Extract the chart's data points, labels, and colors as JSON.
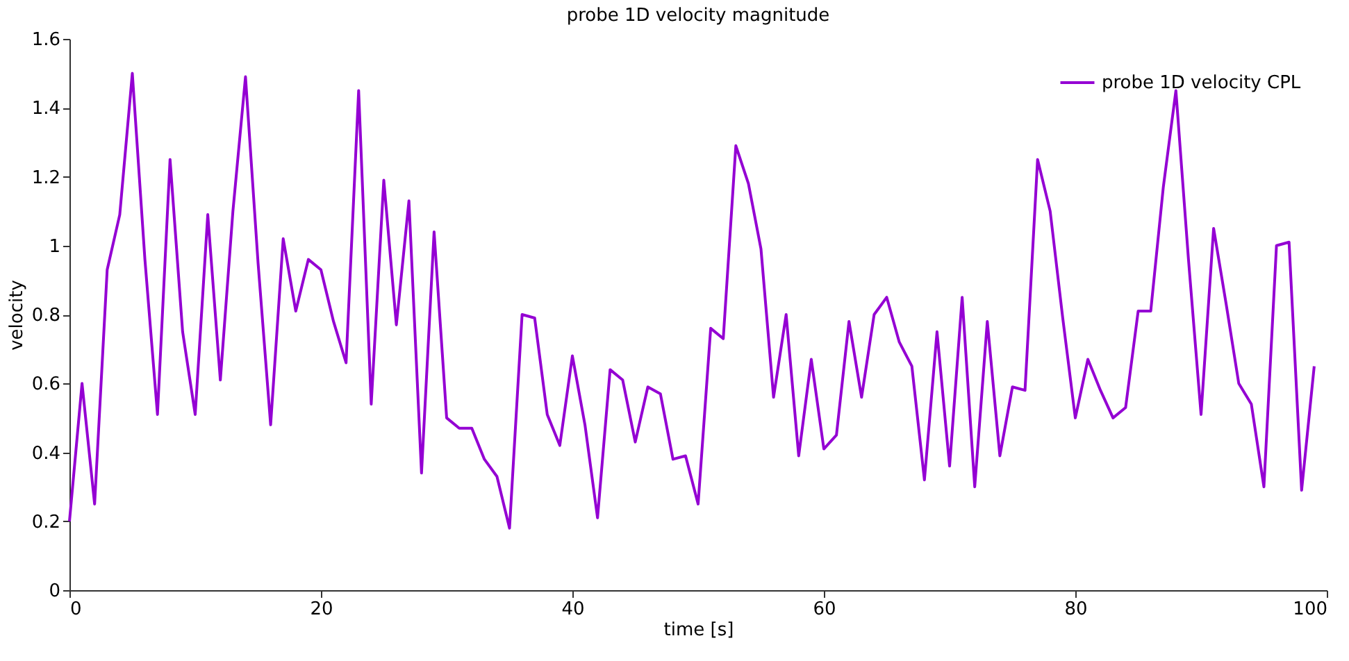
{
  "chart_data": {
    "type": "line",
    "title": "probe 1D velocity magnitude",
    "xlabel": "time [s]",
    "ylabel": "velocity",
    "x": [
      0,
      1,
      2,
      3,
      4,
      5,
      6,
      7,
      8,
      9,
      10,
      11,
      12,
      13,
      14,
      15,
      16,
      17,
      18,
      19,
      20,
      21,
      22,
      23,
      24,
      25,
      26,
      27,
      28,
      29,
      30,
      31,
      32,
      33,
      34,
      35,
      36,
      37,
      38,
      39,
      40,
      41,
      42,
      43,
      44,
      45,
      46,
      47,
      48,
      49,
      50,
      51,
      52,
      53,
      54,
      55,
      56,
      57,
      58,
      59,
      60,
      61,
      62,
      63,
      64,
      65,
      66,
      67,
      68,
      69,
      70,
      71,
      72,
      73,
      74,
      75,
      76,
      77,
      78,
      79,
      80,
      81,
      82,
      83,
      84,
      85,
      86,
      87,
      88,
      89,
      90,
      91,
      92,
      93,
      94,
      95,
      96,
      97,
      98,
      99
    ],
    "series": [
      {
        "name": "probe 1D velocity CPL",
        "color": "#9400d3",
        "values": [
          0.2,
          0.6,
          0.25,
          0.93,
          1.09,
          1.5,
          0.96,
          0.51,
          1.25,
          0.75,
          0.51,
          1.09,
          0.61,
          1.1,
          1.49,
          0.95,
          0.48,
          1.02,
          0.81,
          0.96,
          0.93,
          0.78,
          0.66,
          1.45,
          0.54,
          1.19,
          0.77,
          1.13,
          0.34,
          1.04,
          0.5,
          0.47,
          0.47,
          0.38,
          0.33,
          0.18,
          0.8,
          0.79,
          0.51,
          0.42,
          0.68,
          0.48,
          0.21,
          0.64,
          0.61,
          0.43,
          0.59,
          0.57,
          0.38,
          0.39,
          0.25,
          0.76,
          0.73,
          1.29,
          1.18,
          0.99,
          0.56,
          0.8,
          0.39,
          0.67,
          0.41,
          0.45,
          0.78,
          0.56,
          0.8,
          0.85,
          0.72,
          0.65,
          0.32,
          0.75,
          0.36,
          0.85,
          0.3,
          0.78,
          0.39,
          0.59,
          0.58,
          1.25,
          1.1,
          0.79,
          0.5,
          0.67,
          0.58,
          0.5,
          0.53,
          0.81,
          0.81,
          1.17,
          1.45,
          0.96,
          0.51,
          1.05,
          0.83,
          0.6,
          0.54,
          0.3,
          1.0,
          1.01,
          0.29,
          0.65
        ]
      }
    ],
    "xlim": [
      0,
      100
    ],
    "xticks": [
      0,
      20,
      40,
      60,
      80,
      100
    ],
    "ylim": [
      0,
      1.6
    ],
    "yticks": [
      0,
      0.2,
      0.4,
      0.6,
      0.8,
      1,
      1.2,
      1.4,
      1.6
    ],
    "grid": false,
    "legend": "top right",
    "marker": "none",
    "line_style": "solid"
  }
}
